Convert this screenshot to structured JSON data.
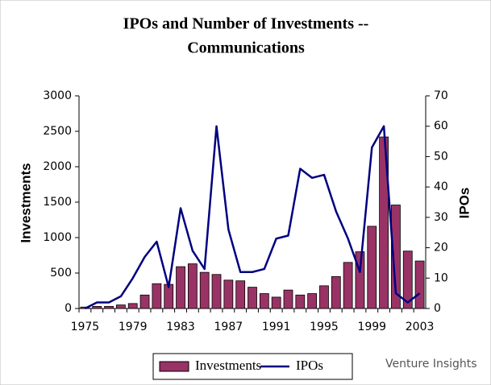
{
  "chart_data": {
    "type": "bar-line",
    "title": "IPOs and Number of Investments --",
    "subtitle": "Communications",
    "y_label": "Investments",
    "y2_label": "IPOs",
    "categories": [
      "1975",
      null,
      null,
      null,
      "1979",
      null,
      null,
      null,
      "1983",
      null,
      null,
      null,
      "1987",
      null,
      null,
      null,
      "1991",
      null,
      null,
      null,
      "1995",
      null,
      null,
      null,
      "1999",
      null,
      null,
      null,
      "2003"
    ],
    "series": [
      {
        "name": "Investments",
        "type": "bar",
        "color": "#993366",
        "values": [
          20,
          30,
          30,
          50,
          70,
          190,
          350,
          340,
          590,
          630,
          510,
          480,
          400,
          390,
          300,
          210,
          160,
          260,
          190,
          210,
          320,
          450,
          650,
          800,
          1160,
          2420,
          1460,
          810,
          670
        ]
      },
      {
        "name": "IPOs",
        "type": "line",
        "axis": "y2",
        "color": "#000080",
        "values": [
          0,
          2,
          2,
          4,
          10,
          17,
          22,
          7,
          33,
          19,
          13,
          60,
          26,
          12,
          12,
          13,
          23,
          24,
          46,
          43,
          44,
          32,
          23,
          12,
          53,
          60,
          5,
          2,
          5
        ]
      }
    ],
    "ylim": [
      0,
      3000
    ],
    "yticks": [
      0,
      500,
      1000,
      1500,
      2000,
      2500,
      3000
    ],
    "y2lim": [
      0,
      70
    ],
    "y2ticks": [
      0,
      10,
      20,
      30,
      40,
      50,
      60,
      70
    ],
    "legend": "bottom",
    "watermark": "Venture Insights"
  }
}
